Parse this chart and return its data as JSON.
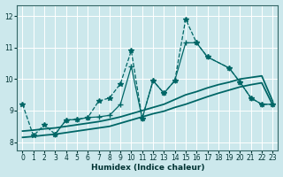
{
  "xlabel": "Humidex (Indice chaleur)",
  "bg_color": "#cce8ec",
  "grid_color": "#ffffff",
  "xlim": [
    -0.5,
    23.5
  ],
  "ylim": [
    7.75,
    12.35
  ],
  "xticks": [
    0,
    1,
    2,
    3,
    4,
    5,
    6,
    7,
    8,
    9,
    10,
    11,
    12,
    13,
    14,
    15,
    16,
    17,
    18,
    19,
    20,
    21,
    22,
    23
  ],
  "yticks": [
    8,
    9,
    10,
    11,
    12
  ],
  "lines": [
    {
      "x": [
        0,
        1,
        2,
        3,
        4,
        5,
        6,
        7,
        8,
        9,
        10,
        11,
        12,
        13,
        14,
        15,
        16,
        17,
        19,
        20,
        21,
        22,
        23
      ],
      "y": [
        9.2,
        8.2,
        8.55,
        8.25,
        8.7,
        8.72,
        8.78,
        9.3,
        9.4,
        9.85,
        10.9,
        8.75,
        9.95,
        9.55,
        9.95,
        11.9,
        11.15,
        10.7,
        10.35,
        9.9,
        9.4,
        9.2,
        9.2
      ],
      "marker": "*",
      "ls": "--",
      "lw": 0.9,
      "color": "#006666",
      "ms": 4
    },
    {
      "x": [
        3,
        4,
        5,
        6,
        7,
        8,
        9,
        10,
        11,
        12,
        13,
        14,
        15,
        16,
        17,
        19,
        20,
        21,
        22,
        23
      ],
      "y": [
        8.25,
        8.7,
        8.72,
        8.78,
        8.8,
        8.85,
        9.2,
        10.4,
        8.75,
        9.95,
        9.55,
        9.95,
        11.15,
        11.15,
        10.7,
        10.35,
        9.9,
        9.4,
        9.2,
        9.2
      ],
      "marker": "+",
      "ls": "-",
      "lw": 0.9,
      "color": "#006666",
      "ms": 5
    },
    {
      "x": [
        0,
        1,
        2,
        3,
        4,
        5,
        6,
        7,
        8,
        9,
        10,
        11,
        12,
        13,
        14,
        15,
        16,
        17,
        18,
        19,
        20,
        21,
        22,
        23
      ],
      "y": [
        8.35,
        8.38,
        8.42,
        8.45,
        8.5,
        8.55,
        8.6,
        8.65,
        8.72,
        8.8,
        8.9,
        9.0,
        9.1,
        9.2,
        9.35,
        9.5,
        9.6,
        9.72,
        9.82,
        9.9,
        10.0,
        10.05,
        10.1,
        9.3
      ],
      "marker": null,
      "ls": "-",
      "lw": 1.3,
      "color": "#006666",
      "ms": 0
    },
    {
      "x": [
        0,
        1,
        2,
        3,
        4,
        5,
        6,
        7,
        8,
        9,
        10,
        11,
        12,
        13,
        14,
        15,
        16,
        17,
        18,
        19,
        20,
        21,
        22,
        23
      ],
      "y": [
        8.15,
        8.18,
        8.22,
        8.25,
        8.3,
        8.35,
        8.4,
        8.45,
        8.5,
        8.6,
        8.7,
        8.8,
        8.9,
        8.98,
        9.1,
        9.2,
        9.32,
        9.44,
        9.55,
        9.65,
        9.75,
        9.82,
        9.88,
        9.18
      ],
      "marker": null,
      "ls": "-",
      "lw": 1.3,
      "color": "#006666",
      "ms": 0
    }
  ]
}
